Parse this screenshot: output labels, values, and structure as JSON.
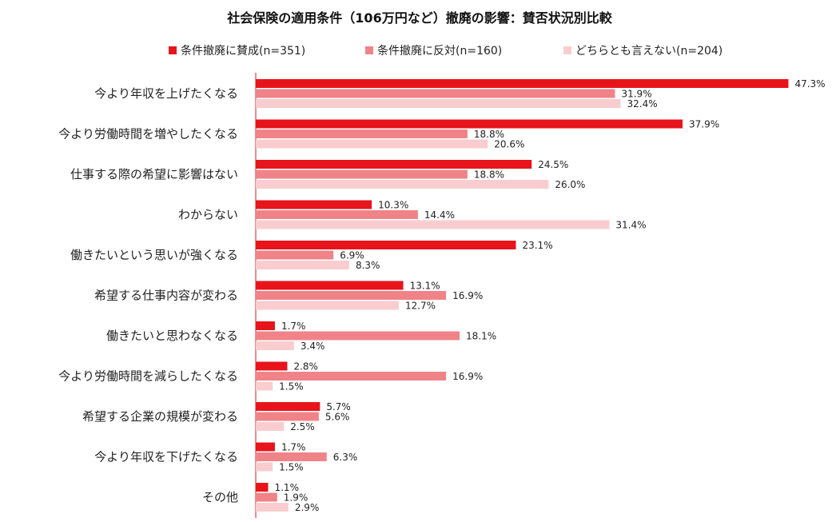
{
  "chart_data": {
    "type": "bar",
    "orientation": "horizontal",
    "title": "社会保険の適用条件（106万円など）撤廃の影響：賛否状況別比較",
    "categories": [
      "今より年収を上げたくなる",
      "今より労働時間を増やしたくなる",
      "仕事する際の希望に影響はない",
      "わからない",
      "働きたいという思いが強くなる",
      "希望する仕事内容が変わる",
      "働きたいと思わなくなる",
      "今より労働時間を減らしたくなる",
      "希望する企業の規模が変わる",
      "今より年収を下げたくなる",
      "その他"
    ],
    "series": [
      {
        "name": "条件撤廃に賛成(n=351)",
        "color": "#E8141B",
        "values": [
          47.3,
          37.9,
          24.5,
          10.3,
          23.1,
          13.1,
          1.7,
          2.8,
          5.7,
          1.7,
          1.1
        ],
        "labels": [
          "47.3%",
          "37.9%",
          "24.5%",
          "10.3%",
          "23.1%",
          "13.1%",
          "1.7%",
          "2.8%",
          "5.7%",
          "1.7%",
          "1.1%"
        ]
      },
      {
        "name": "条件撤廃に反対(n=160)",
        "color": "#F08388",
        "values": [
          31.9,
          18.8,
          18.8,
          14.4,
          6.9,
          16.9,
          18.1,
          16.9,
          5.6,
          6.3,
          1.9
        ],
        "labels": [
          "31.9%",
          "18.8%",
          "18.8%",
          "14.4%",
          "6.9%",
          "16.9%",
          "18.1%",
          "16.9%",
          "5.6%",
          "6.3%",
          "1.9%"
        ]
      },
      {
        "name": "どちらとも言えない(n=204)",
        "color": "#F9CDCF",
        "values": [
          32.4,
          20.6,
          26.0,
          31.4,
          8.3,
          12.7,
          3.4,
          1.5,
          2.5,
          1.5,
          2.9
        ],
        "labels": [
          "32.4%",
          "20.6%",
          "26.0%",
          "31.4%",
          "8.3%",
          "12.7%",
          "3.4%",
          "1.5%",
          "2.5%",
          "1.5%",
          "2.9%"
        ]
      }
    ],
    "xlim": [
      0,
      50
    ],
    "legend_position": "top",
    "grid": false,
    "axis_color": "#E8141B"
  }
}
